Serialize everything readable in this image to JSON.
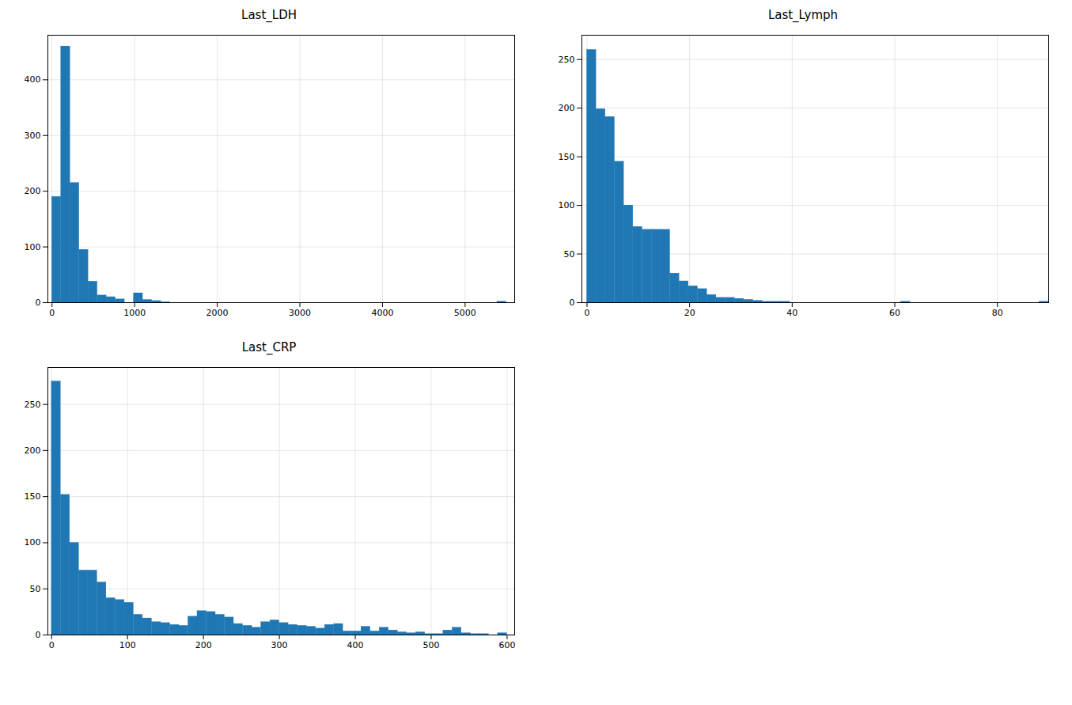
{
  "chart_data": [
    {
      "type": "histogram",
      "title": "Last_LDH",
      "color": "#1f77b4",
      "grid": true,
      "bins": [
        0,
        110,
        220,
        330,
        440,
        550,
        660,
        770,
        880,
        990,
        1100,
        1210,
        1320,
        1430,
        1540,
        1650,
        1760,
        1870,
        1980,
        2090,
        2200,
        2310,
        2420,
        2530,
        2640,
        2750,
        2860,
        2970,
        3080,
        3190,
        3300,
        3410,
        3520,
        3630,
        3740,
        3850,
        3960,
        4070,
        4180,
        4290,
        4400,
        4510,
        4620,
        4730,
        4840,
        4950,
        5060,
        5170,
        5280,
        5390,
        5500
      ],
      "values": [
        190,
        460,
        215,
        95,
        38,
        13,
        10,
        6,
        0,
        17,
        5,
        3,
        1,
        0,
        0,
        0,
        0,
        0,
        0,
        0,
        0,
        0,
        0,
        0,
        0,
        0,
        0,
        0,
        0,
        0,
        0,
        0,
        0,
        0,
        0,
        0,
        0,
        0,
        0,
        0,
        0,
        0,
        0,
        0,
        0,
        0,
        0,
        0,
        0,
        2
      ],
      "xlim": [
        -50,
        5600
      ],
      "xticks": [
        0,
        1000,
        2000,
        3000,
        4000,
        5000
      ],
      "ylim": [
        0,
        480
      ],
      "yticks": [
        0,
        100,
        200,
        300,
        400
      ]
    },
    {
      "type": "histogram",
      "title": "Last_Lymph",
      "color": "#1f77b4",
      "grid": true,
      "bins": [
        0,
        1.8,
        3.6,
        5.4,
        7.2,
        9.0,
        10.8,
        12.6,
        14.4,
        16.2,
        18.0,
        19.8,
        21.6,
        23.4,
        25.2,
        27.0,
        28.8,
        30.6,
        32.4,
        34.2,
        36.0,
        37.8,
        39.6,
        41.4,
        43.2,
        45.0,
        46.8,
        48.6,
        50.4,
        52.2,
        54.0,
        55.8,
        57.6,
        59.4,
        61.2,
        63.0,
        64.8,
        66.6,
        68.4,
        70.2,
        72.0,
        73.8,
        75.6,
        77.4,
        79.2,
        81.0,
        82.8,
        84.6,
        86.4,
        88.2,
        90.0
      ],
      "values": [
        260,
        199,
        191,
        145,
        100,
        78,
        75,
        75,
        75,
        30,
        22,
        17,
        14,
        8,
        5,
        5,
        4,
        3,
        2,
        1,
        1,
        1,
        0,
        0,
        0,
        0,
        0,
        0,
        0,
        0,
        0,
        0,
        0,
        0,
        1,
        0,
        0,
        0,
        0,
        0,
        0,
        0,
        0,
        0,
        0,
        0,
        0,
        0,
        0,
        1
      ],
      "xlim": [
        -1,
        90
      ],
      "xticks": [
        0,
        20,
        40,
        60,
        80
      ],
      "ylim": [
        0,
        275
      ],
      "yticks": [
        0,
        50,
        100,
        150,
        200,
        250
      ]
    },
    {
      "type": "histogram",
      "title": "Last_CRP",
      "color": "#1f77b4",
      "grid": true,
      "bins": [
        0,
        12,
        24,
        36,
        48,
        60,
        72,
        84,
        96,
        108,
        120,
        132,
        144,
        156,
        168,
        180,
        192,
        204,
        216,
        228,
        240,
        252,
        264,
        276,
        288,
        300,
        312,
        324,
        336,
        348,
        360,
        372,
        384,
        396,
        408,
        420,
        432,
        444,
        456,
        468,
        480,
        492,
        504,
        516,
        528,
        540,
        552,
        564,
        576,
        588,
        600
      ],
      "values": [
        275,
        152,
        100,
        70,
        70,
        57,
        40,
        38,
        35,
        22,
        18,
        14,
        13,
        11,
        10,
        20,
        26,
        25,
        22,
        19,
        12,
        10,
        8,
        14,
        16,
        13,
        11,
        10,
        9,
        7,
        11,
        12,
        4,
        4,
        9,
        4,
        8,
        5,
        3,
        2,
        3,
        1,
        1,
        5,
        8,
        2,
        1,
        1,
        0,
        2
      ],
      "xlim": [
        -5,
        610
      ],
      "xticks": [
        0,
        100,
        200,
        300,
        400,
        500,
        600
      ],
      "ylim": [
        0,
        290
      ],
      "yticks": [
        0,
        50,
        100,
        150,
        200,
        250
      ]
    }
  ]
}
